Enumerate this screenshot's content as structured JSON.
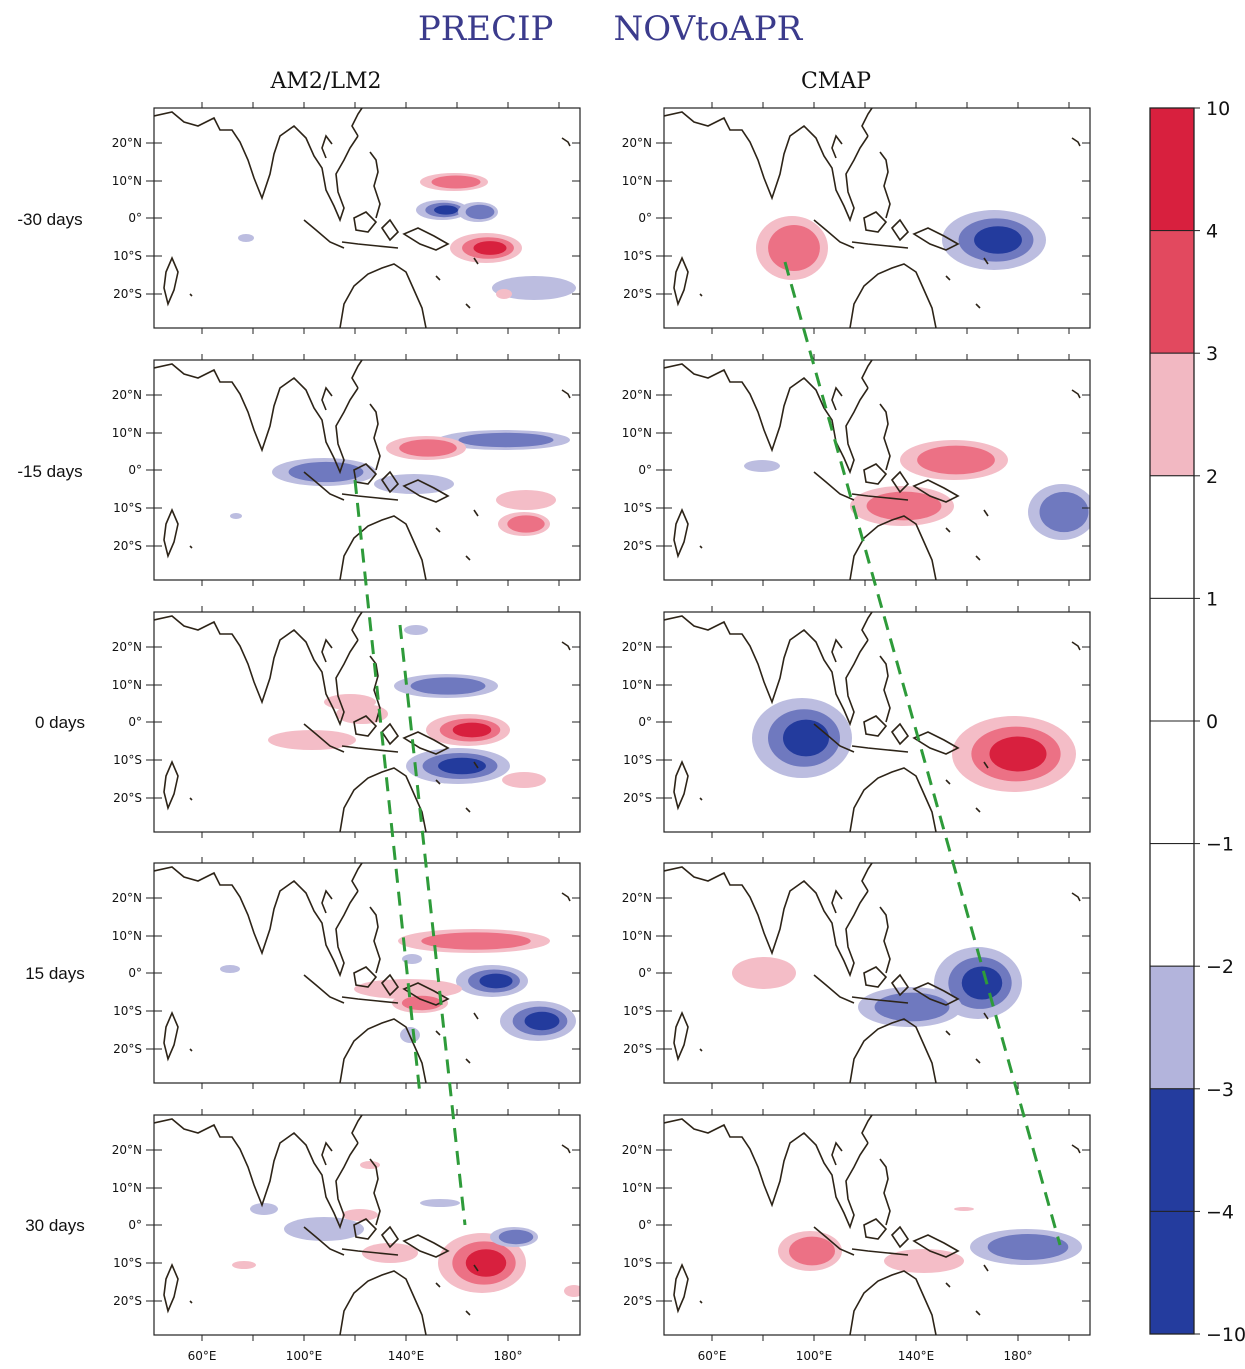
{
  "title": {
    "part1": "PRECIP",
    "part2": "NOVtoAPR"
  },
  "columns": [
    {
      "title": "AM2/LM2"
    },
    {
      "title": "CMAP"
    }
  ],
  "rows": [
    {
      "label": "-30 days"
    },
    {
      "label": "-15 days"
    },
    {
      "label": "0 days"
    },
    {
      "label": "15 days"
    },
    {
      "label": "30 days"
    }
  ],
  "lat_labels": [
    "20°N",
    "10°N",
    "0°",
    "10°S",
    "20°S"
  ],
  "lon_labels": [
    "60°E",
    "100°E",
    "140°E",
    "180°"
  ],
  "colorbar": {
    "levels": [
      "10",
      "4",
      "3",
      "2",
      "1",
      "0",
      "−1",
      "−2",
      "−3",
      "−4",
      "−10"
    ],
    "colors": [
      "#d8203e",
      "#e2495f",
      "#f2b8c2",
      "#ffffff",
      "#ffffff",
      "#ffffff",
      "#ffffff",
      "#b3b4dc",
      "#243c9e",
      "#243c9e"
    ]
  },
  "colors": {
    "title": "#3b3b8c",
    "red_strong": "#d8203e",
    "red_mid": "#ec7185",
    "red_light": "#f4bdc7",
    "blue_strong": "#233b9d",
    "blue_mid": "#6f79bf",
    "blue_light": "#bcbde0",
    "coast": "#2d2418",
    "dash": "#2e9b3a"
  }
}
